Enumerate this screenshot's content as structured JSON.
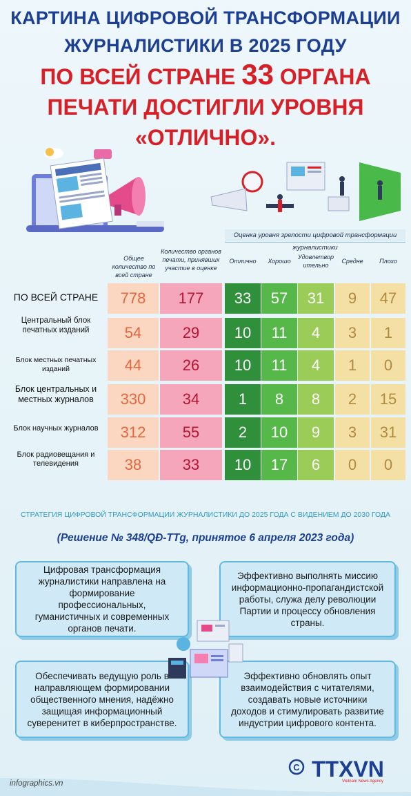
{
  "title": {
    "line1": "КАРТИНА ЦИФРОВОЙ ТРАНСФОРМАЦИИ",
    "line2": "ЖУРНАЛИСТИКИ В 2025 ГОДУ",
    "line3_a": "ПО ВСЕЙ СТРАНЕ ",
    "line3_num": "33",
    "line3_b": " ОРГАНА",
    "line4": "ПЕЧАТИ ДОСТИГЛИ УРОВНЯ",
    "line5": "«ОТЛИЧНО»."
  },
  "table": {
    "eval_header": "Оценка уровня зрелости цифровой трансформации журналистики",
    "col_total": "Общее количество по всей стране",
    "col_participating": "Количество органов печати, принявших участие в оценке",
    "col_excellent": "Отлично",
    "col_good": "Хорошо",
    "col_satisfactory": "Удовлетвор ительно",
    "col_average": "Средне",
    "col_poor": "Плохо",
    "rows": [
      {
        "label": "ПО ВСЕЙ СТРАНЕ",
        "total": "778",
        "participating": "177",
        "excellent": "33",
        "good": "57",
        "satisfactory": "31",
        "average": "9",
        "poor": "47"
      },
      {
        "label": "Центральный блок печатных изданий",
        "total": "54",
        "participating": "29",
        "excellent": "10",
        "good": "11",
        "satisfactory": "4",
        "average": "3",
        "poor": "1"
      },
      {
        "label": "Блок местных печатных изданий",
        "total": "44",
        "participating": "26",
        "excellent": "10",
        "good": "11",
        "satisfactory": "4",
        "average": "1",
        "poor": "0"
      },
      {
        "label": "Блок центральных и местных журналов",
        "total": "330",
        "participating": "34",
        "excellent": "1",
        "good": "8",
        "satisfactory": "8",
        "average": "2",
        "poor": "15"
      },
      {
        "label": "Блок научных журналов",
        "total": "312",
        "participating": "55",
        "excellent": "2",
        "good": "10",
        "satisfactory": "9",
        "average": "3",
        "poor": "31"
      },
      {
        "label": "Блок радиовещания и телевидения",
        "total": "38",
        "participating": "33",
        "excellent": "10",
        "good": "17",
        "satisfactory": "6",
        "average": "0",
        "poor": "0"
      }
    ]
  },
  "strategy": "СТРАТЕГИЯ ЦИФРОВОЙ ТРАНСФОРМАЦИИ ЖУРНАЛИСТИКИ ДО 2025 ГОДА С ВИДЕНИЕМ ДО 2030 ГОДА",
  "decision": "(Решение № 348/QĐ-TTg, принятое 6 апреля 2023 года)",
  "boxes": {
    "top_left": "Цифровая трансформация журналистики направлена на формирование профессиональных, гуманистичных и современных органов печати.",
    "top_right": "Эффективно выполнять миссию информационно-пропагандистской работы, служа делу революции Партии и процессу обновления страны.",
    "bottom_left": "Обеспечивать ведущую роль в направляющем формировании общественного мнения, надёжно защищая информационный суверенитет в киберпространстве.",
    "bottom_right": "Эффективно обновлять опыт взаимодействия с читателями, создавать новые источники доходов и стимулировать развитие индустрии цифрового контента."
  },
  "footer": {
    "site": "infographics.vn",
    "copyright": "©",
    "logo": "TTXVN",
    "logo_sub": "Vietnam News Agency"
  }
}
